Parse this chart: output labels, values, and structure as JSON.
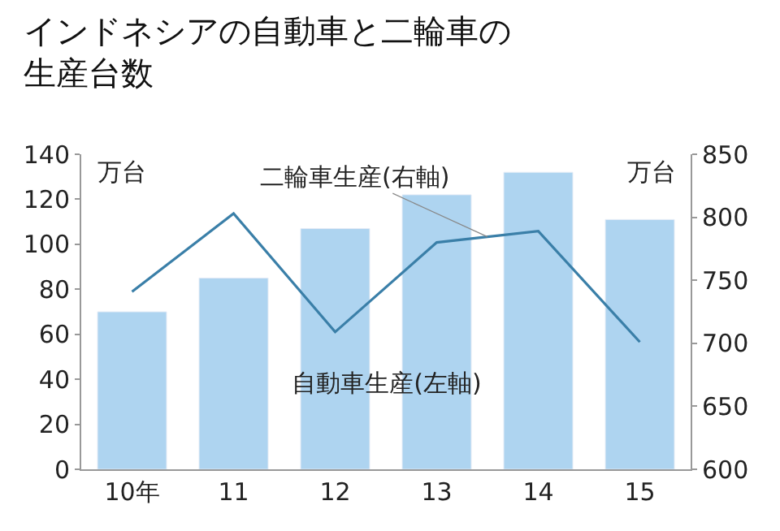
{
  "chart_data": {
    "type": "bar",
    "title": "インドネシアの自動車と二輪車の生産台数",
    "ylabel": "万台",
    "y2label": "万台",
    "categories": [
      "10年",
      "11",
      "12",
      "13",
      "14",
      "15"
    ],
    "series": [
      {
        "name": "自動車生産(左軸)",
        "color": "#aed4f0",
        "values": [
          70,
          85,
          107,
          122,
          132,
          111
        ]
      },
      {
        "name": "二輪車生産(右軸)",
        "type": "line",
        "axis": "y2",
        "color": "#3a7fa8",
        "values": [
          741,
          803,
          709,
          780,
          789,
          701
        ]
      }
    ],
    "ylim": [
      0,
      140
    ],
    "yticks": [
      0,
      20,
      40,
      60,
      80,
      100,
      120,
      140
    ],
    "y2lim": [
      600,
      850
    ],
    "y2ticks": [
      600,
      650,
      700,
      750,
      800,
      850
    ],
    "grid": false,
    "legend": false,
    "marker": "none",
    "line_style": "solid"
  }
}
